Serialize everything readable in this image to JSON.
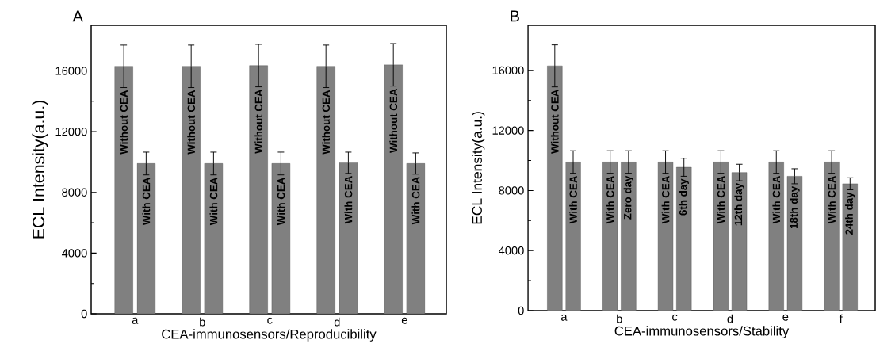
{
  "chart_data": [
    {
      "type": "bar",
      "title": "A",
      "xlabel": "CEA-immunosensors/Reproducibility",
      "ylabel": "ECL Intensity(a.u.)",
      "categories": [
        "a",
        "b",
        "c",
        "d",
        "e"
      ],
      "series": [
        {
          "color": "#808080",
          "values": [
            16300,
            16300,
            16350,
            16300,
            16400
          ],
          "errors": [
            1400,
            1400,
            1400,
            1400,
            1400
          ]
        },
        {
          "color": "#808080",
          "values": [
            9900,
            9900,
            9900,
            9950,
            9900
          ],
          "errors": [
            750,
            750,
            750,
            700,
            700
          ]
        }
      ],
      "ylim": [
        0,
        19000
      ],
      "yticks": [
        0,
        4000,
        8000,
        12000,
        16000
      ],
      "annotations": [
        {
          "text": "Without CEA",
          "x": "a",
          "y": 16300
        },
        {
          "text": "With CEA",
          "x": "a",
          "y": 9900
        },
        {
          "text": "Without CEA",
          "x": "b",
          "y": 16300
        },
        {
          "text": "With CEA",
          "x": "b",
          "y": 9900
        },
        {
          "text": "Without CEA",
          "x": "c",
          "y": 16350
        },
        {
          "text": "With CEA",
          "x": "c",
          "y": 9900
        },
        {
          "text": "Without CEA",
          "x": "d",
          "y": 16300
        },
        {
          "text": "With CEA",
          "x": "d",
          "y": 9950
        },
        {
          "text": "Without CEA",
          "x": "e",
          "y": 16400
        },
        {
          "text": "With CEA",
          "x": "e",
          "y": 9900
        }
      ]
    },
    {
      "type": "bar",
      "title": "B",
      "xlabel": "CEA-immunosensors/Stability",
      "ylabel": "ECL Intensity(a.u.)",
      "categories": [
        "a",
        "b",
        "c",
        "d",
        "e",
        "f"
      ],
      "series": [
        {
          "color": "#808080",
          "values": [
            16300,
            9900,
            9900,
            9900,
            9900,
            9900
          ],
          "errors": [
            1400,
            750,
            750,
            750,
            750,
            750
          ]
        },
        {
          "color": "#808080",
          "values": [
            9900,
            9900,
            9550,
            9200,
            8950,
            8450
          ],
          "errors": [
            750,
            750,
            600,
            550,
            500,
            400
          ]
        }
      ],
      "ylim": [
        0,
        19000
      ],
      "yticks": [
        0,
        4000,
        8000,
        12000,
        16000
      ],
      "annotations": [
        {
          "text": "Without CEA",
          "x": "a",
          "y": 16300
        },
        {
          "text": "With CEA",
          "x": "a",
          "y": 9900
        },
        {
          "text": "With CEA",
          "x": "b",
          "y": 9900
        },
        {
          "text": "Zero day",
          "x": "b",
          "y": 9900
        },
        {
          "text": "With CEA",
          "x": "c",
          "y": 9900
        },
        {
          "text": "6th day",
          "x": "c",
          "y": 9550
        },
        {
          "text": "With CEA",
          "x": "d",
          "y": 9900
        },
        {
          "text": "12th day",
          "x": "d",
          "y": 9200
        },
        {
          "text": "With CEA",
          "x": "e",
          "y": 9900
        },
        {
          "text": "18th day",
          "x": "e",
          "y": 8950
        },
        {
          "text": "With CEA",
          "x": "f",
          "y": 9900
        },
        {
          "text": "24th day",
          "x": "f",
          "y": 8450
        }
      ]
    }
  ]
}
